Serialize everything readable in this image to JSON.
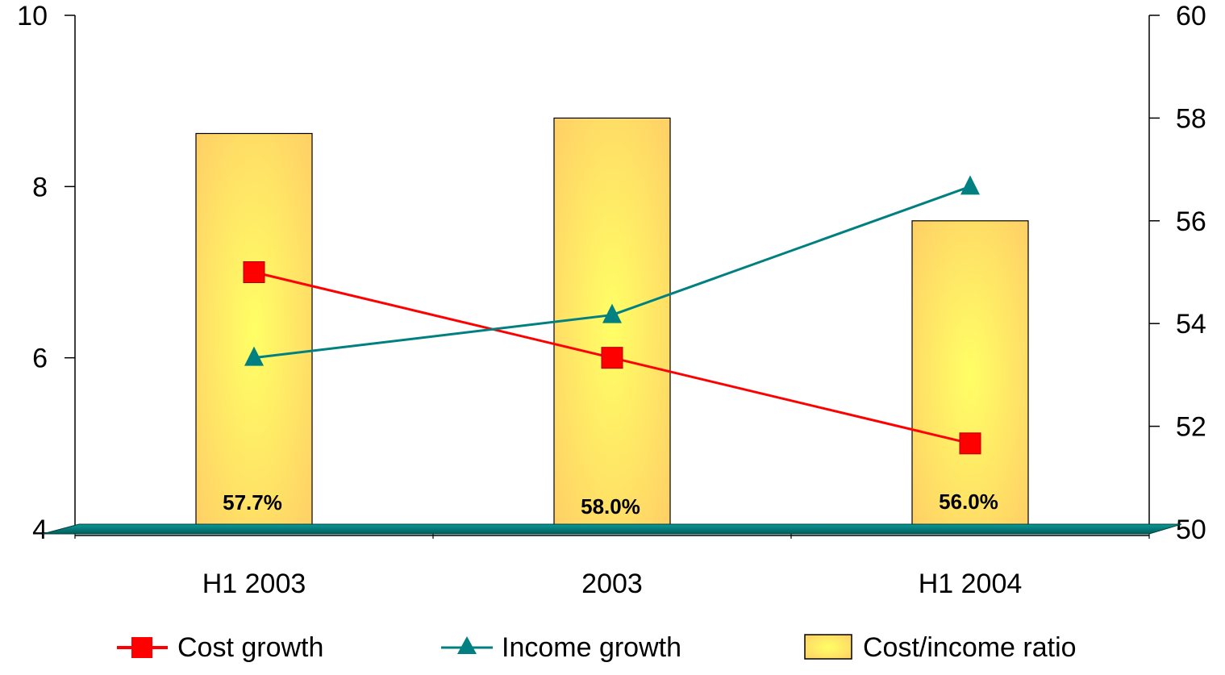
{
  "chart_data": {
    "type": "bar",
    "categories": [
      "H1 2003",
      "2003",
      "H1 2004"
    ],
    "y_left": {
      "min": 4,
      "max": 10,
      "ticks": [
        4,
        6,
        8,
        10
      ]
    },
    "y_right": {
      "min": 50,
      "max": 60,
      "ticks": [
        50,
        52,
        54,
        56,
        58,
        60
      ]
    },
    "bars": {
      "name": "Cost/income ratio",
      "axis": "right",
      "values": [
        57.7,
        58.0,
        56.0
      ],
      "labels": [
        "57.7%",
        "58.0%",
        "56.0%"
      ],
      "color": "#ffd966"
    },
    "series": [
      {
        "name": "Cost growth",
        "axis": "left",
        "values": [
          7.0,
          6.0,
          5.0
        ],
        "color": "#ff0000",
        "marker": "square"
      },
      {
        "name": "Income growth",
        "axis": "left",
        "values": [
          6.0,
          6.5,
          8.0
        ],
        "color": "#008080",
        "marker": "triangle"
      }
    ],
    "grid": false,
    "legend": "bottom",
    "floor_color": "#007a78"
  }
}
